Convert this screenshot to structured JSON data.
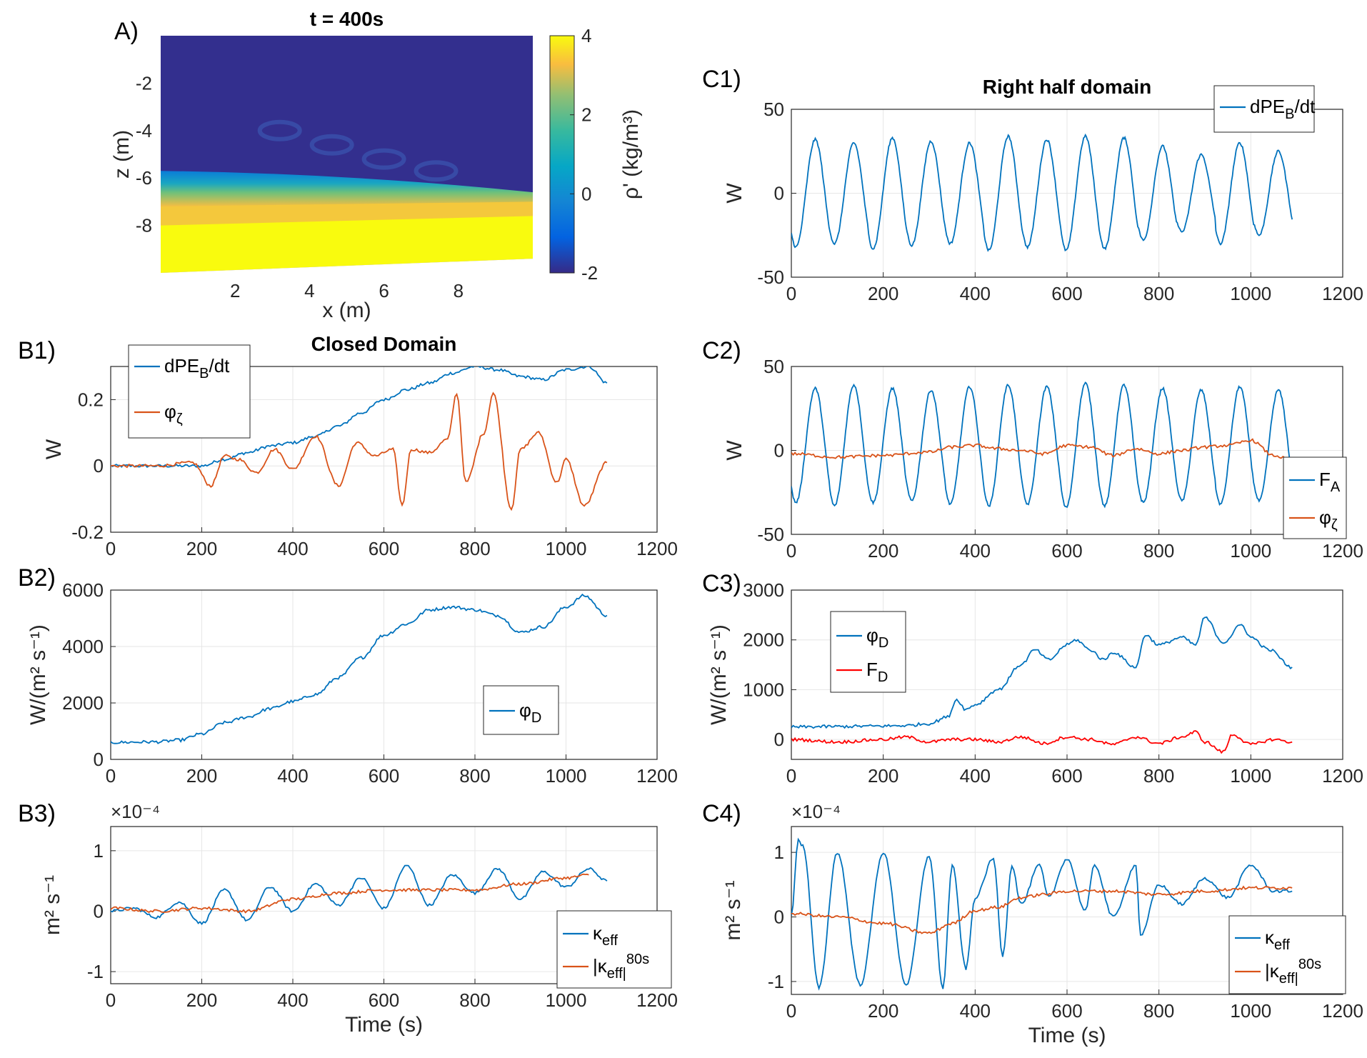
{
  "colors": {
    "blue": "#0072BD",
    "orange": "#D95319",
    "red": "#FF0000",
    "grid": "#e6e6e6",
    "axis": "#262626"
  },
  "chart_data": [
    {
      "id": "A",
      "panel_label": "A)",
      "type": "heatmap",
      "title": "t = 400s",
      "xlabel": "x (m)",
      "ylabel": "z (m)",
      "xlim": [
        0,
        10
      ],
      "ylim": [
        -10,
        0
      ],
      "xticks": [
        2,
        4,
        6,
        8
      ],
      "yticks": [
        -8,
        -6,
        -4,
        -2
      ],
      "colorbar": {
        "label": "ρ' (kg/m³)",
        "range": [
          -2,
          4
        ],
        "ticks": [
          -2,
          0,
          2,
          4
        ]
      },
      "interface": {
        "x": [
          0,
          5,
          10
        ],
        "z": [
          -6.0,
          -6.2,
          -6.6
        ]
      }
    },
    {
      "id": "B1",
      "panel_label": "B1)",
      "type": "line",
      "title": "Closed Domain",
      "xlabel": "",
      "ylabel": "W",
      "xlim": [
        0,
        1200
      ],
      "ylim": [
        -0.2,
        0.3
      ],
      "xticks": [
        0,
        200,
        400,
        600,
        800,
        1000,
        1200
      ],
      "yticks": [
        -0.2,
        0,
        0.2
      ],
      "legend": "top-left",
      "grid": true,
      "series": [
        {
          "name": "dPE_B/dt",
          "color": "#0072BD",
          "x": [
            0,
            100,
            200,
            250,
            300,
            350,
            400,
            450,
            500,
            550,
            600,
            650,
            700,
            750,
            800,
            850,
            900,
            950,
            1000,
            1050,
            1090
          ],
          "y": [
            0,
            0,
            0,
            0.02,
            0.04,
            0.06,
            0.07,
            0.09,
            0.12,
            0.16,
            0.2,
            0.23,
            0.25,
            0.28,
            0.3,
            0.29,
            0.27,
            0.26,
            0.29,
            0.3,
            0.25
          ]
        },
        {
          "name": "φ_ζ",
          "color": "#D95319",
          "x": [
            0,
            100,
            180,
            220,
            250,
            280,
            320,
            360,
            400,
            450,
            500,
            540,
            580,
            620,
            640,
            660,
            700,
            740,
            760,
            780,
            820,
            840,
            880,
            900,
            940,
            980,
            1000,
            1040,
            1090
          ],
          "y": [
            0,
            0,
            0.01,
            -0.06,
            0.03,
            0.02,
            -0.02,
            0.05,
            -0.01,
            0.09,
            -0.06,
            0.07,
            0.03,
            0.05,
            -0.12,
            0.05,
            0.04,
            0.08,
            0.22,
            -0.05,
            0.1,
            0.22,
            -0.13,
            0.05,
            0.1,
            -0.05,
            0.02,
            -0.12,
            0.01
          ]
        }
      ]
    },
    {
      "id": "B2",
      "panel_label": "B2)",
      "type": "line",
      "title": "",
      "xlabel": "",
      "ylabel": "W/(m² s⁻¹)",
      "xlim": [
        0,
        1200
      ],
      "ylim": [
        0,
        6000
      ],
      "xticks": [
        0,
        200,
        400,
        600,
        800,
        1000,
        1200
      ],
      "yticks": [
        0,
        2000,
        4000,
        6000
      ],
      "legend": "lower-right",
      "grid": true,
      "series": [
        {
          "name": "φ_D",
          "color": "#0072BD",
          "x": [
            0,
            100,
            150,
            200,
            250,
            300,
            350,
            400,
            450,
            500,
            550,
            600,
            650,
            700,
            750,
            800,
            850,
            900,
            950,
            1000,
            1040,
            1090
          ],
          "y": [
            600,
            620,
            680,
            900,
            1300,
            1500,
            1800,
            2050,
            2300,
            2900,
            3600,
            4400,
            4800,
            5300,
            5400,
            5300,
            5100,
            4500,
            4700,
            5400,
            5800,
            5100
          ]
        }
      ]
    },
    {
      "id": "B3",
      "panel_label": "B3)",
      "type": "line",
      "title": "",
      "xlabel": "Time (s)",
      "ylabel": "m² s⁻¹",
      "exponent": "×10⁻⁴",
      "xlim": [
        0,
        1200
      ],
      "ylim": [
        -1.2,
        1.4
      ],
      "xticks": [
        0,
        200,
        400,
        600,
        800,
        1000,
        1200
      ],
      "yticks": [
        -1,
        0,
        1
      ],
      "legend": "lower-right",
      "grid": true,
      "series": [
        {
          "name": "κ_eff",
          "color": "#0072BD",
          "x": [
            0,
            50,
            100,
            150,
            200,
            250,
            300,
            350,
            400,
            450,
            500,
            550,
            600,
            650,
            700,
            750,
            800,
            850,
            900,
            950,
            1000,
            1050,
            1090
          ],
          "y": [
            0,
            0.05,
            -0.1,
            0.15,
            -0.2,
            0.35,
            -0.15,
            0.4,
            0.0,
            0.45,
            0.1,
            0.55,
            0.05,
            0.75,
            0.1,
            0.6,
            0.3,
            0.7,
            0.2,
            0.65,
            0.4,
            0.7,
            0.5
          ]
        },
        {
          "name": "|κ_eff|^80s",
          "color": "#D95319",
          "x": [
            0,
            100,
            200,
            300,
            400,
            500,
            600,
            700,
            800,
            900,
            1000,
            1050
          ],
          "y": [
            0.05,
            0.0,
            0.05,
            0.0,
            0.2,
            0.3,
            0.35,
            0.35,
            0.35,
            0.45,
            0.55,
            0.6
          ]
        }
      ]
    },
    {
      "id": "C1",
      "panel_label": "C1)",
      "type": "line",
      "title": "Right half domain",
      "xlabel": "",
      "ylabel": "W",
      "xlim": [
        0,
        1200
      ],
      "ylim": [
        -50,
        50
      ],
      "xticks": [
        0,
        200,
        400,
        600,
        800,
        1000,
        1200
      ],
      "yticks": [
        -50,
        0,
        50
      ],
      "legend": "top-right",
      "grid": true,
      "oscillation": {
        "period_s": 84,
        "mean": 0,
        "amplitude": [
          32,
          30,
          33,
          31,
          30,
          34,
          32,
          34,
          33,
          28,
          23,
          30,
          25,
          25
        ]
      },
      "series": [
        {
          "name": "dPE_B/dt",
          "color": "#0072BD",
          "x_range": [
            0,
            1090
          ]
        }
      ]
    },
    {
      "id": "C2",
      "panel_label": "C2)",
      "type": "line",
      "title": "",
      "xlabel": "",
      "ylabel": "W",
      "xlim": [
        0,
        1200
      ],
      "ylim": [
        -50,
        50
      ],
      "xticks": [
        0,
        200,
        400,
        600,
        800,
        1000,
        1200
      ],
      "yticks": [
        -50,
        0,
        50
      ],
      "legend": "lower-right",
      "grid": true,
      "oscillation": {
        "period_s": 84,
        "mean": 3,
        "amplitude": [
          34,
          36,
          34,
          33,
          35,
          36,
          35,
          37,
          36,
          34,
          33,
          35,
          33,
          28
        ]
      },
      "series": [
        {
          "name": "F_A",
          "color": "#0072BD",
          "x_range": [
            0,
            1090
          ]
        },
        {
          "name": "φ_ζ",
          "color": "#D95319",
          "x": [
            0,
            100,
            200,
            300,
            350,
            400,
            450,
            500,
            550,
            600,
            650,
            700,
            750,
            800,
            850,
            900,
            950,
            1000,
            1050,
            1090
          ],
          "y": [
            -2,
            -4,
            -3,
            -1,
            2,
            3,
            1,
            0,
            -2,
            3,
            2,
            -3,
            1,
            -2,
            0,
            2,
            3,
            6,
            -3,
            -6
          ]
        }
      ]
    },
    {
      "id": "C3",
      "panel_label": "C3)",
      "type": "line",
      "title": "",
      "xlabel": "",
      "ylabel": "W/(m² s⁻¹)",
      "xlim": [
        0,
        1200
      ],
      "ylim": [
        -400,
        3000
      ],
      "xticks": [
        0,
        200,
        400,
        600,
        800,
        1000,
        1200
      ],
      "yticks": [
        0,
        1000,
        2000,
        3000
      ],
      "legend": "top-left",
      "grid": true,
      "series": [
        {
          "name": "φ_D",
          "color": "#0072BD",
          "x": [
            0,
            100,
            200,
            250,
            300,
            340,
            360,
            380,
            400,
            450,
            500,
            530,
            560,
            600,
            620,
            650,
            680,
            700,
            750,
            770,
            800,
            850,
            880,
            900,
            940,
            980,
            1000,
            1040,
            1090
          ],
          "y": [
            250,
            260,
            270,
            280,
            320,
            450,
            800,
            600,
            700,
            1000,
            1500,
            1800,
            1600,
            1900,
            2000,
            1800,
            1600,
            1750,
            1450,
            2100,
            1900,
            2050,
            1900,
            2450,
            1950,
            2300,
            2050,
            1800,
            1450
          ]
        },
        {
          "name": "F_D",
          "color": "#FF0000",
          "x": [
            0,
            100,
            200,
            250,
            300,
            350,
            400,
            450,
            500,
            550,
            600,
            650,
            700,
            750,
            800,
            850,
            880,
            900,
            940,
            960,
            1000,
            1050,
            1090
          ],
          "y": [
            0,
            -50,
            0,
            50,
            -50,
            0,
            0,
            -50,
            50,
            -80,
            50,
            0,
            -100,
            50,
            -80,
            50,
            150,
            -50,
            -250,
            100,
            -100,
            0,
            -50
          ]
        }
      ]
    },
    {
      "id": "C4",
      "panel_label": "C4)",
      "type": "line",
      "title": "",
      "xlabel": "Time (s)",
      "ylabel": "m² s⁻¹",
      "exponent": "×10⁻⁴",
      "xlim": [
        0,
        1200
      ],
      "ylim": [
        -1.2,
        1.4
      ],
      "xticks": [
        0,
        200,
        400,
        600,
        800,
        1000,
        1200
      ],
      "yticks": [
        -1,
        0,
        1
      ],
      "legend": "lower-right",
      "grid": true,
      "series": [
        {
          "name": "κ_eff",
          "color": "#0072BD",
          "x": [
            0,
            15,
            25,
            60,
            100,
            150,
            200,
            250,
            300,
            330,
            350,
            380,
            400,
            440,
            460,
            480,
            500,
            540,
            560,
            600,
            640,
            660,
            700,
            750,
            760,
            800,
            850,
            900,
            950,
            1000,
            1050,
            1090
          ],
          "y": [
            0,
            1.2,
            1.1,
            -1.1,
            1.0,
            -1.05,
            1.0,
            -1.05,
            0.95,
            -1.1,
            0.8,
            -0.8,
            0.3,
            0.9,
            -0.6,
            0.8,
            0.2,
            0.8,
            0.3,
            0.9,
            0.1,
            0.8,
            0.0,
            0.8,
            -0.3,
            0.5,
            0.2,
            0.6,
            0.3,
            0.8,
            0.4,
            0.4
          ]
        },
        {
          "name": "|κ_eff|^80s",
          "color": "#D95319",
          "x": [
            0,
            100,
            200,
            300,
            350,
            400,
            450,
            500,
            550,
            600,
            700,
            800,
            900,
            1000,
            1090
          ],
          "y": [
            0.05,
            0.0,
            -0.1,
            -0.25,
            -0.1,
            0.1,
            0.15,
            0.3,
            0.35,
            0.4,
            0.4,
            0.35,
            0.4,
            0.45,
            0.45
          ]
        }
      ]
    }
  ]
}
